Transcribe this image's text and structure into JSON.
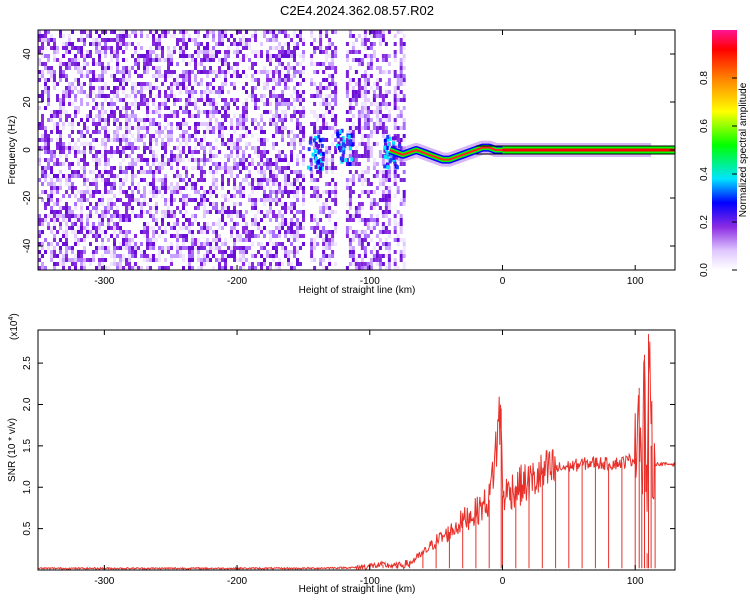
{
  "title": "C2E4.2024.362.08.57.R02",
  "chart_data": [
    {
      "type": "heatmap",
      "xlabel": "Height of straight line (km)",
      "ylabel": "Frequency (Hz)",
      "xlim": [
        -350,
        130
      ],
      "ylim": [
        -50,
        50
      ],
      "xticks": [
        -300,
        -200,
        -100,
        0,
        100
      ],
      "yticks": [
        -40,
        -20,
        0,
        20,
        40
      ],
      "colorbar": {
        "label": "Normalized spectral amplitude",
        "range": [
          0,
          1
        ],
        "ticks": [
          0.0,
          0.2,
          0.4,
          0.6,
          0.8
        ],
        "colors": [
          "#ffffff",
          "#e0c8ff",
          "#8a2be2",
          "#0000ff",
          "#00e5ff",
          "#00ff00",
          "#ffff00",
          "#ff8000",
          "#ff0000",
          "#ff1493"
        ]
      },
      "noise_regions": [
        [
          -350,
          -150
        ],
        [
          -145,
          -125
        ],
        [
          -118,
          -85
        ],
        [
          -82,
          -75
        ]
      ],
      "signal_trace": {
        "x": [
          -85,
          -80,
          -75,
          -70,
          -65,
          -60,
          -55,
          -50,
          -45,
          -40,
          -35,
          -30,
          -25,
          -20,
          -15,
          -10,
          -5,
          0,
          20,
          40,
          60,
          80,
          100,
          112
        ],
        "y": [
          0,
          -1,
          -2,
          -1,
          0,
          -1,
          -2,
          -3,
          -4,
          -4,
          -3,
          -2,
          -1,
          0,
          1,
          1,
          0,
          0,
          0,
          0,
          0,
          0,
          0,
          0
        ]
      }
    },
    {
      "type": "line",
      "xlabel": "Height of straight line (km)",
      "ylabel": "SNR (10 * v/v)",
      "scale_label": "(x10",
      "scale_exponent": "4",
      "xlim": [
        -350,
        130
      ],
      "ylim": [
        0,
        2.9
      ],
      "xticks": [
        -300,
        -200,
        -100,
        0,
        100
      ],
      "yticks": [
        0.5,
        1.0,
        1.5,
        2.0,
        2.5
      ],
      "color": "#e8302a",
      "series": [
        {
          "x": [
            -350,
            -150,
            -110,
            -100,
            -90,
            -80,
            -70,
            -60,
            -50,
            -40,
            -30,
            -20,
            -10,
            -1,
            0,
            10,
            20,
            30,
            40,
            50,
            60,
            70,
            80,
            90,
            100,
            103,
            105,
            107,
            109,
            110,
            112,
            115,
            130
          ],
          "y": [
            0.02,
            0.02,
            0.03,
            0.05,
            0.06,
            0.05,
            0.08,
            0.2,
            0.35,
            0.45,
            0.6,
            0.7,
            0.85,
            1.95,
            0.9,
            1.0,
            1.05,
            1.15,
            1.22,
            1.25,
            1.28,
            1.3,
            1.28,
            1.3,
            1.35,
            2.2,
            1.0,
            2.6,
            0.2,
            2.85,
            1.5,
            1.28,
            1.28
          ]
        }
      ]
    }
  ]
}
